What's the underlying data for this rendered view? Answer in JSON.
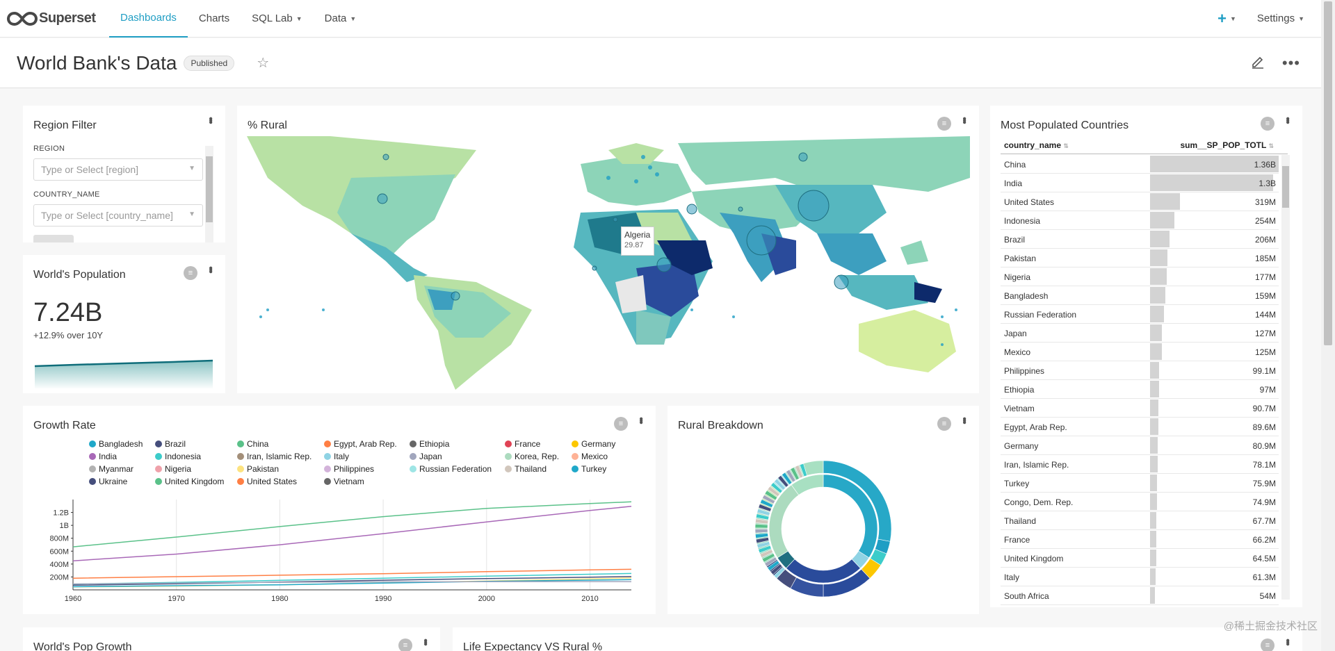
{
  "nav": {
    "brand": "Superset",
    "items": [
      {
        "label": "Dashboards",
        "active": true,
        "caret": false
      },
      {
        "label": "Charts",
        "active": false,
        "caret": false
      },
      {
        "label": "SQL Lab",
        "active": false,
        "caret": true
      },
      {
        "label": "Data",
        "active": false,
        "caret": true
      }
    ],
    "settings": "Settings",
    "plus_icon": "plus-icon"
  },
  "header": {
    "title": "World Bank's Data",
    "badge": "Published"
  },
  "region_filter": {
    "title": "Region Filter",
    "region_label": "REGION",
    "region_placeholder": "Type or Select [region]",
    "country_label": "COUNTRY_NAME",
    "country_placeholder": "Type or Select [country_name]"
  },
  "world_population": {
    "title": "World's Population",
    "value": "7.24B",
    "subheader": "+12.9% over 10Y"
  },
  "rural_map": {
    "title": "% Rural",
    "tooltip_country": "Algeria",
    "tooltip_value": "29.87"
  },
  "most_populated": {
    "title": "Most Populated Countries",
    "col1": "country_name",
    "col2": "sum__SP_POP_TOTL",
    "rows": [
      {
        "name": "China",
        "value": "1.36B",
        "pop": 1.36
      },
      {
        "name": "India",
        "value": "1.3B",
        "pop": 1.3
      },
      {
        "name": "United States",
        "value": "319M",
        "pop": 0.319
      },
      {
        "name": "Indonesia",
        "value": "254M",
        "pop": 0.254
      },
      {
        "name": "Brazil",
        "value": "206M",
        "pop": 0.206
      },
      {
        "name": "Pakistan",
        "value": "185M",
        "pop": 0.185
      },
      {
        "name": "Nigeria",
        "value": "177M",
        "pop": 0.177
      },
      {
        "name": "Bangladesh",
        "value": "159M",
        "pop": 0.159
      },
      {
        "name": "Russian Federation",
        "value": "144M",
        "pop": 0.144
      },
      {
        "name": "Japan",
        "value": "127M",
        "pop": 0.127
      },
      {
        "name": "Mexico",
        "value": "125M",
        "pop": 0.125
      },
      {
        "name": "Philippines",
        "value": "99.1M",
        "pop": 0.0991
      },
      {
        "name": "Ethiopia",
        "value": "97M",
        "pop": 0.097
      },
      {
        "name": "Vietnam",
        "value": "90.7M",
        "pop": 0.0907
      },
      {
        "name": "Egypt, Arab Rep.",
        "value": "89.6M",
        "pop": 0.0896
      },
      {
        "name": "Germany",
        "value": "80.9M",
        "pop": 0.0809
      },
      {
        "name": "Iran, Islamic Rep.",
        "value": "78.1M",
        "pop": 0.0781
      },
      {
        "name": "Turkey",
        "value": "75.9M",
        "pop": 0.0759
      },
      {
        "name": "Congo, Dem. Rep.",
        "value": "74.9M",
        "pop": 0.0749
      },
      {
        "name": "Thailand",
        "value": "67.7M",
        "pop": 0.0677
      },
      {
        "name": "France",
        "value": "66.2M",
        "pop": 0.0662
      },
      {
        "name": "United Kingdom",
        "value": "64.5M",
        "pop": 0.0645
      },
      {
        "name": "Italy",
        "value": "61.3M",
        "pop": 0.0613
      },
      {
        "name": "South Africa",
        "value": "54M",
        "pop": 0.054
      }
    ]
  },
  "growth_rate": {
    "title": "Growth Rate",
    "legend": [
      {
        "name": "Bangladesh",
        "color": "#1fa8c9"
      },
      {
        "name": "Brazil",
        "color": "#454e7c"
      },
      {
        "name": "China",
        "color": "#5ac189"
      },
      {
        "name": "Egypt, Arab Rep.",
        "color": "#ff7f44"
      },
      {
        "name": "Ethiopia",
        "color": "#666666"
      },
      {
        "name": "France",
        "color": "#e04355"
      },
      {
        "name": "Germany",
        "color": "#fcc700"
      },
      {
        "name": "India",
        "color": "#a868b7"
      },
      {
        "name": "Indonesia",
        "color": "#3cccca"
      },
      {
        "name": "Iran, Islamic Rep.",
        "color": "#a38f79"
      },
      {
        "name": "Italy",
        "color": "#8fd3e4"
      },
      {
        "name": "Japan",
        "color": "#a1a6bd"
      },
      {
        "name": "Korea, Rep.",
        "color": "#acdbbf"
      },
      {
        "name": "Mexico",
        "color": "#feb296"
      },
      {
        "name": "Myanmar",
        "color": "#b2b2b2"
      },
      {
        "name": "Nigeria",
        "color": "#efa1aa"
      },
      {
        "name": "Pakistan",
        "color": "#fde380"
      },
      {
        "name": "Philippines",
        "color": "#d3b3da"
      },
      {
        "name": "Russian Federation",
        "color": "#9ee5e5"
      },
      {
        "name": "Thailand",
        "color": "#d1c6bc"
      },
      {
        "name": "Turkey",
        "color": "#1fa8c9"
      },
      {
        "name": "Ukraine",
        "color": "#454e7c"
      },
      {
        "name": "United Kingdom",
        "color": "#5ac189"
      },
      {
        "name": "United States",
        "color": "#ff7f44"
      },
      {
        "name": "Vietnam",
        "color": "#666666"
      }
    ]
  },
  "rural_breakdown": {
    "title": "Rural Breakdown"
  },
  "worlds_pop_growth": {
    "title": "World's Pop Growth"
  },
  "life_expectancy": {
    "title": "Life Expectancy VS Rural %"
  },
  "watermark": "@稀土掘金技术社区",
  "chart_data": [
    {
      "type": "line",
      "title": "Growth Rate",
      "x": [
        1960,
        1970,
        1980,
        1990,
        2000,
        2010,
        2014
      ],
      "x_ticks": [
        "1960",
        "1970",
        "1980",
        "1990",
        "2000",
        "2010"
      ],
      "y_ticks": [
        "200M",
        "400M",
        "600M",
        "800M",
        "1B",
        "1.2B"
      ],
      "ylim": [
        0,
        1400000000
      ],
      "series": [
        {
          "name": "China",
          "color": "#5ac189",
          "values": [
            667000000,
            818000000,
            981000000,
            1135000000,
            1263000000,
            1338000000,
            1364000000
          ]
        },
        {
          "name": "India",
          "color": "#a868b7",
          "values": [
            450000000,
            555000000,
            699000000,
            871000000,
            1053000000,
            1231000000,
            1295000000
          ]
        },
        {
          "name": "United States",
          "color": "#ff7f44",
          "values": [
            181000000,
            205000000,
            227000000,
            250000000,
            282000000,
            309000000,
            319000000
          ]
        },
        {
          "name": "Indonesia",
          "color": "#3cccca",
          "values": [
            88000000,
            115000000,
            147000000,
            181000000,
            212000000,
            242000000,
            254000000
          ]
        },
        {
          "name": "Brazil",
          "color": "#454e7c",
          "values": [
            72000000,
            95000000,
            121000000,
            150000000,
            175000000,
            196000000,
            206000000
          ]
        },
        {
          "name": "Pakistan",
          "color": "#fde380",
          "values": [
            45000000,
            58000000,
            78000000,
            107000000,
            138000000,
            170000000,
            185000000
          ]
        },
        {
          "name": "Bangladesh",
          "color": "#1fa8c9",
          "values": [
            48000000,
            65000000,
            79000000,
            106000000,
            131000000,
            151000000,
            159000000
          ]
        },
        {
          "name": "Japan",
          "color": "#a1a6bd",
          "values": [
            92000000,
            104000000,
            117000000,
            124000000,
            127000000,
            128000000,
            127000000
          ]
        }
      ]
    },
    {
      "type": "pie",
      "title": "Rural Breakdown",
      "rings": 2,
      "note": "sunburst of rural population by region and country"
    }
  ]
}
